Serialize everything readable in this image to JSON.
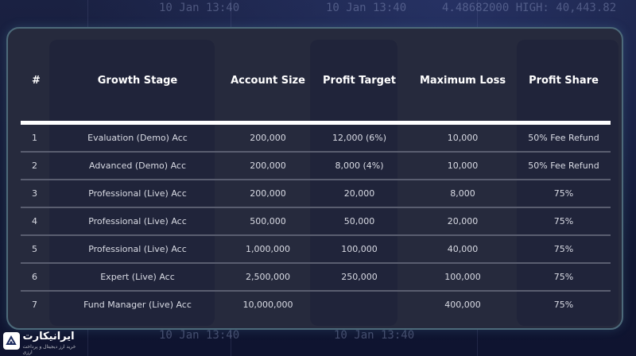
{
  "background": {
    "texts": [
      "10 Jan 13:40",
      "10 Jan 13:40",
      "4.48682000 HIGH: 40,443.82",
      "10 Jan 13:40",
      "10 Jan 13:40"
    ]
  },
  "table": {
    "headers": [
      "#",
      "Growth Stage",
      "Account Size",
      "Profit Target",
      "Maximum Loss",
      "Profit Share"
    ],
    "rows": [
      [
        "1",
        "Evaluation (Demo) Acc",
        "200,000",
        "12,000 (6%)",
        "10,000",
        "50% Fee Refund"
      ],
      [
        "2",
        "Advanced (Demo) Acc",
        "200,000",
        "8,000 (4%)",
        "10,000",
        "50% Fee Refund"
      ],
      [
        "3",
        "Professional (Live) Acc",
        "200,000",
        "20,000",
        "8,000",
        "75%"
      ],
      [
        "4",
        "Professional (Live) Acc",
        "500,000",
        "50,000",
        "20,000",
        "75%"
      ],
      [
        "5",
        "Professional (Live) Acc",
        "1,000,000",
        "100,000",
        "40,000",
        "75%"
      ],
      [
        "6",
        "Expert (Live) Acc",
        "2,500,000",
        "250,000",
        "100,000",
        "75%"
      ],
      [
        "7",
        "Fund Manager (Live) Acc",
        "10,000,000",
        "",
        "400,000",
        "75%"
      ]
    ]
  },
  "watermark": {
    "title": "ایرانیکارت",
    "subtitle": "خرید ارز دیجیتال و پرداخت ارزی",
    "icon": "iranicard-logo-icon"
  }
}
